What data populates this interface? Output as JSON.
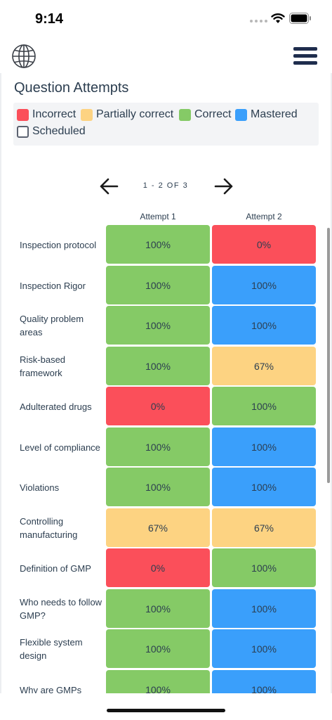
{
  "status_bar": {
    "time": "9:14"
  },
  "colors": {
    "incorrect": "#fb4f5a",
    "partial": "#fdd382",
    "correct": "#85ca66",
    "mastered": "#3a9ffb",
    "scheduled": "#ffffff"
  },
  "page": {
    "title": "Question Attempts"
  },
  "legend": [
    {
      "label": "Incorrect",
      "status": "incorrect"
    },
    {
      "label": "Partially correct",
      "status": "partial"
    },
    {
      "label": "Correct",
      "status": "correct"
    },
    {
      "label": "Mastered",
      "status": "mastered"
    },
    {
      "label": "Scheduled",
      "status": "scheduled"
    }
  ],
  "pager": {
    "text": "1 - 2 OF 3"
  },
  "columns": [
    "Attempt 1",
    "Attempt 2"
  ],
  "rows": [
    {
      "label": "Inspection protocol",
      "cells": [
        {
          "value": "100%",
          "status": "correct"
        },
        {
          "value": "0%",
          "status": "incorrect"
        }
      ]
    },
    {
      "label": "Inspection Rigor",
      "cells": [
        {
          "value": "100%",
          "status": "correct"
        },
        {
          "value": "100%",
          "status": "mastered"
        }
      ]
    },
    {
      "label": "Quality problem areas",
      "cells": [
        {
          "value": "100%",
          "status": "correct"
        },
        {
          "value": "100%",
          "status": "mastered"
        }
      ]
    },
    {
      "label": "Risk-based framework",
      "cells": [
        {
          "value": "100%",
          "status": "correct"
        },
        {
          "value": "67%",
          "status": "partial"
        }
      ]
    },
    {
      "label": "Adulterated drugs",
      "cells": [
        {
          "value": "0%",
          "status": "incorrect"
        },
        {
          "value": "100%",
          "status": "correct"
        }
      ]
    },
    {
      "label": "Level of compliance",
      "cells": [
        {
          "value": "100%",
          "status": "correct"
        },
        {
          "value": "100%",
          "status": "mastered"
        }
      ]
    },
    {
      "label": "Violations",
      "cells": [
        {
          "value": "100%",
          "status": "correct"
        },
        {
          "value": "100%",
          "status": "mastered"
        }
      ]
    },
    {
      "label": "Controlling manufacturing",
      "cells": [
        {
          "value": "67%",
          "status": "partial"
        },
        {
          "value": "67%",
          "status": "partial"
        }
      ]
    },
    {
      "label": "Definition of GMP",
      "cells": [
        {
          "value": "0%",
          "status": "incorrect"
        },
        {
          "value": "100%",
          "status": "correct"
        }
      ]
    },
    {
      "label": "Who needs to follow GMP?",
      "cells": [
        {
          "value": "100%",
          "status": "correct"
        },
        {
          "value": "100%",
          "status": "mastered"
        }
      ]
    },
    {
      "label": "Flexible system design",
      "cells": [
        {
          "value": "100%",
          "status": "correct"
        },
        {
          "value": "100%",
          "status": "mastered"
        }
      ]
    },
    {
      "label": "Why are GMPs",
      "cells": [
        {
          "value": "100%",
          "status": "correct"
        },
        {
          "value": "100%",
          "status": "mastered"
        }
      ]
    }
  ]
}
